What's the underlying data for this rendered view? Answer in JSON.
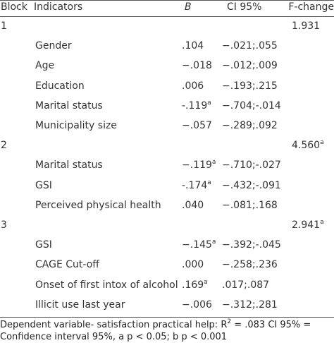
{
  "header": {
    "block": "Block",
    "indicators": "Indicators",
    "b": "B",
    "ci": "CI 95%",
    "f": "F-change"
  },
  "rows": [
    {
      "block": "1",
      "f": "1.931"
    },
    {
      "indicator": "Gender",
      "b": ".104",
      "ci": "−.021;.055"
    },
    {
      "indicator": "Age",
      "b": "−.018",
      "ci": "−.012;.009"
    },
    {
      "indicator": "Education",
      "b": ".006",
      "ci": "−.193;.215"
    },
    {
      "indicator": "Marital status",
      "b": "-.119",
      "b_sup": "a",
      "ci": "−.704;-.014"
    },
    {
      "indicator": "Municipality size",
      "b": "−.057",
      "ci": "−.289;.092"
    },
    {
      "block": "2",
      "f": "4.560",
      "f_sup": "a"
    },
    {
      "indicator": "Marital status",
      "b": "−.119",
      "b_sup": "a",
      "ci": "−.710;-.027"
    },
    {
      "indicator": "GSI",
      "b": "-.174",
      "b_sup": "a",
      "ci": "−.432;-.091"
    },
    {
      "indicator": "Perceived physical health",
      "b": ".040",
      "ci": "−.081;.168"
    },
    {
      "block": "3",
      "f": "2.941",
      "f_sup": "a"
    },
    {
      "indicator": "GSI",
      "b": "−.145",
      "b_sup": "a",
      "ci": "−.392;-.045"
    },
    {
      "indicator": "CAGE Cut-off",
      "b": ".000",
      "ci": "−.258;.236"
    },
    {
      "indicator": "Onset of first intox of alcohol",
      "b": ".169",
      "b_sup": "a",
      "ci": ".017;.087"
    },
    {
      "indicator": "Illicit use last year",
      "b": "−.006",
      "ci": "−.312;.281"
    }
  ],
  "footnote": {
    "before": "Dependent variable- satisfaction practical help: R",
    "sup": "2",
    "after": " = .083 CI 95% = Confidence interval 95%, a p < 0.05; b p < 0.001"
  }
}
